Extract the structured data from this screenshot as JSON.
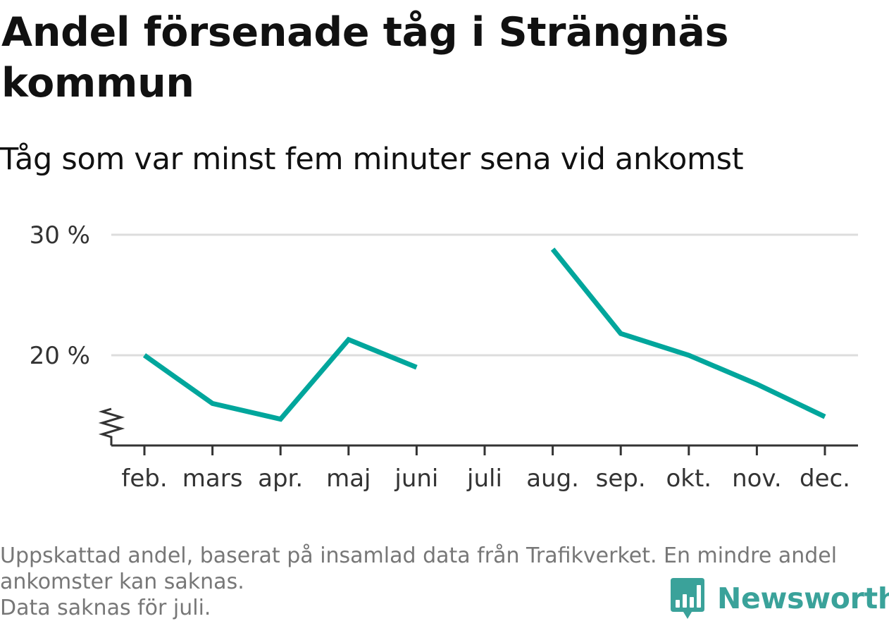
{
  "title": "Andel försenade tåg i Strängnäs kommun",
  "subtitle": "Tåg som var minst fem minuter sena vid ankomst",
  "colors": {
    "line": "#00a69c",
    "grid": "#dddddd",
    "axis": "#333333",
    "brand": "#3aa29a"
  },
  "chart_data": {
    "type": "line",
    "categories": [
      "feb.",
      "mars",
      "apr.",
      "maj",
      "juni",
      "juli",
      "aug.",
      "sep.",
      "okt.",
      "nov.",
      "dec."
    ],
    "series": [
      {
        "values": [
          20.0,
          16.0,
          14.7,
          21.3,
          19.0,
          null,
          28.8,
          21.8,
          20.0,
          17.6,
          14.9
        ]
      }
    ],
    "y_ticks": [
      20,
      30
    ],
    "y_tick_labels": [
      "20 %",
      "30 %"
    ],
    "ylim": [
      12.5,
      30
    ],
    "y_axis_break": true,
    "grid": true
  },
  "footnote": [
    "Uppskattad andel, baserat på insamlad data från Trafikverket. En mindre andel",
    "ankomster kan saknas.",
    "Data saknas för juli."
  ],
  "brand": {
    "name": "Newsworthy",
    "logo_icon": "bar-chart-speech-bubble-icon"
  }
}
